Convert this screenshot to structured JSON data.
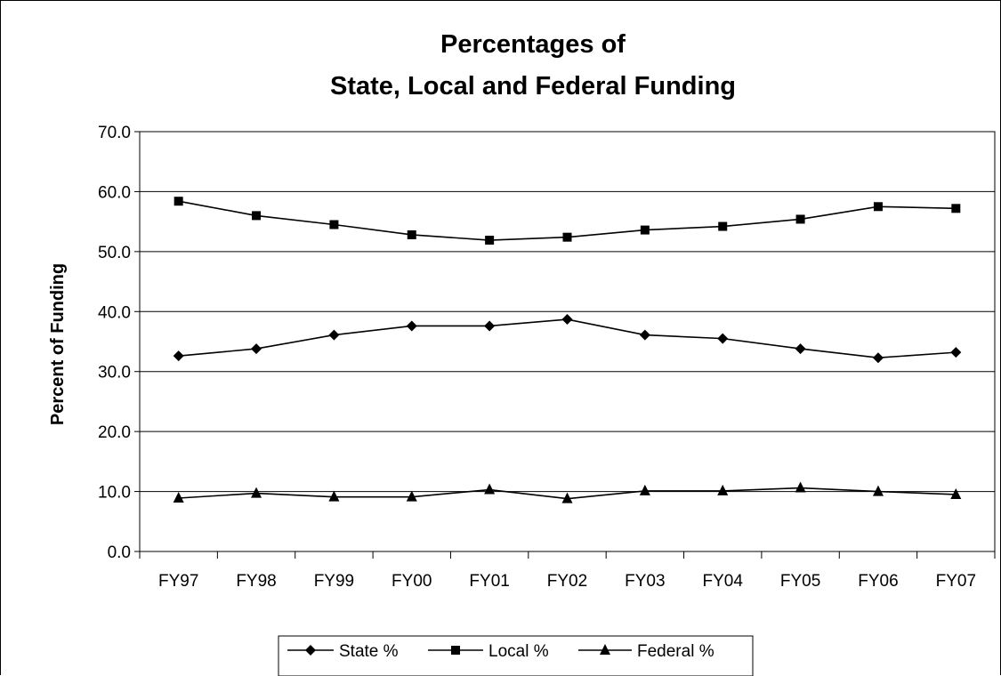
{
  "chart_data": {
    "type": "line",
    "title_lines": [
      "Percentages of",
      "State, Local and Federal Funding"
    ],
    "xlabel": "",
    "ylabel": "Percent of Funding",
    "ylim": [
      0,
      70
    ],
    "yticks": [
      "0.0",
      "10.0",
      "20.0",
      "30.0",
      "40.0",
      "50.0",
      "60.0",
      "70.0"
    ],
    "grid": true,
    "legend_position": "bottom",
    "categories": [
      "FY97",
      "FY98",
      "FY99",
      "FY00",
      "FY01",
      "FY02",
      "FY03",
      "FY04",
      "FY05",
      "FY06",
      "FY07"
    ],
    "series": [
      {
        "name": "State %",
        "marker": "diamond",
        "color": "#000000",
        "values": [
          32.6,
          33.8,
          36.1,
          37.6,
          37.6,
          38.7,
          36.1,
          35.5,
          33.8,
          32.3,
          33.2
        ]
      },
      {
        "name": "Local %",
        "marker": "square",
        "color": "#000000",
        "values": [
          58.4,
          56.0,
          54.5,
          52.8,
          51.9,
          52.4,
          53.6,
          54.2,
          55.4,
          57.5,
          57.2
        ]
      },
      {
        "name": "Federal %",
        "marker": "triangle",
        "color": "#000000",
        "values": [
          8.9,
          9.7,
          9.1,
          9.1,
          10.3,
          8.8,
          10.1,
          10.1,
          10.6,
          10.0,
          9.5
        ]
      }
    ]
  }
}
